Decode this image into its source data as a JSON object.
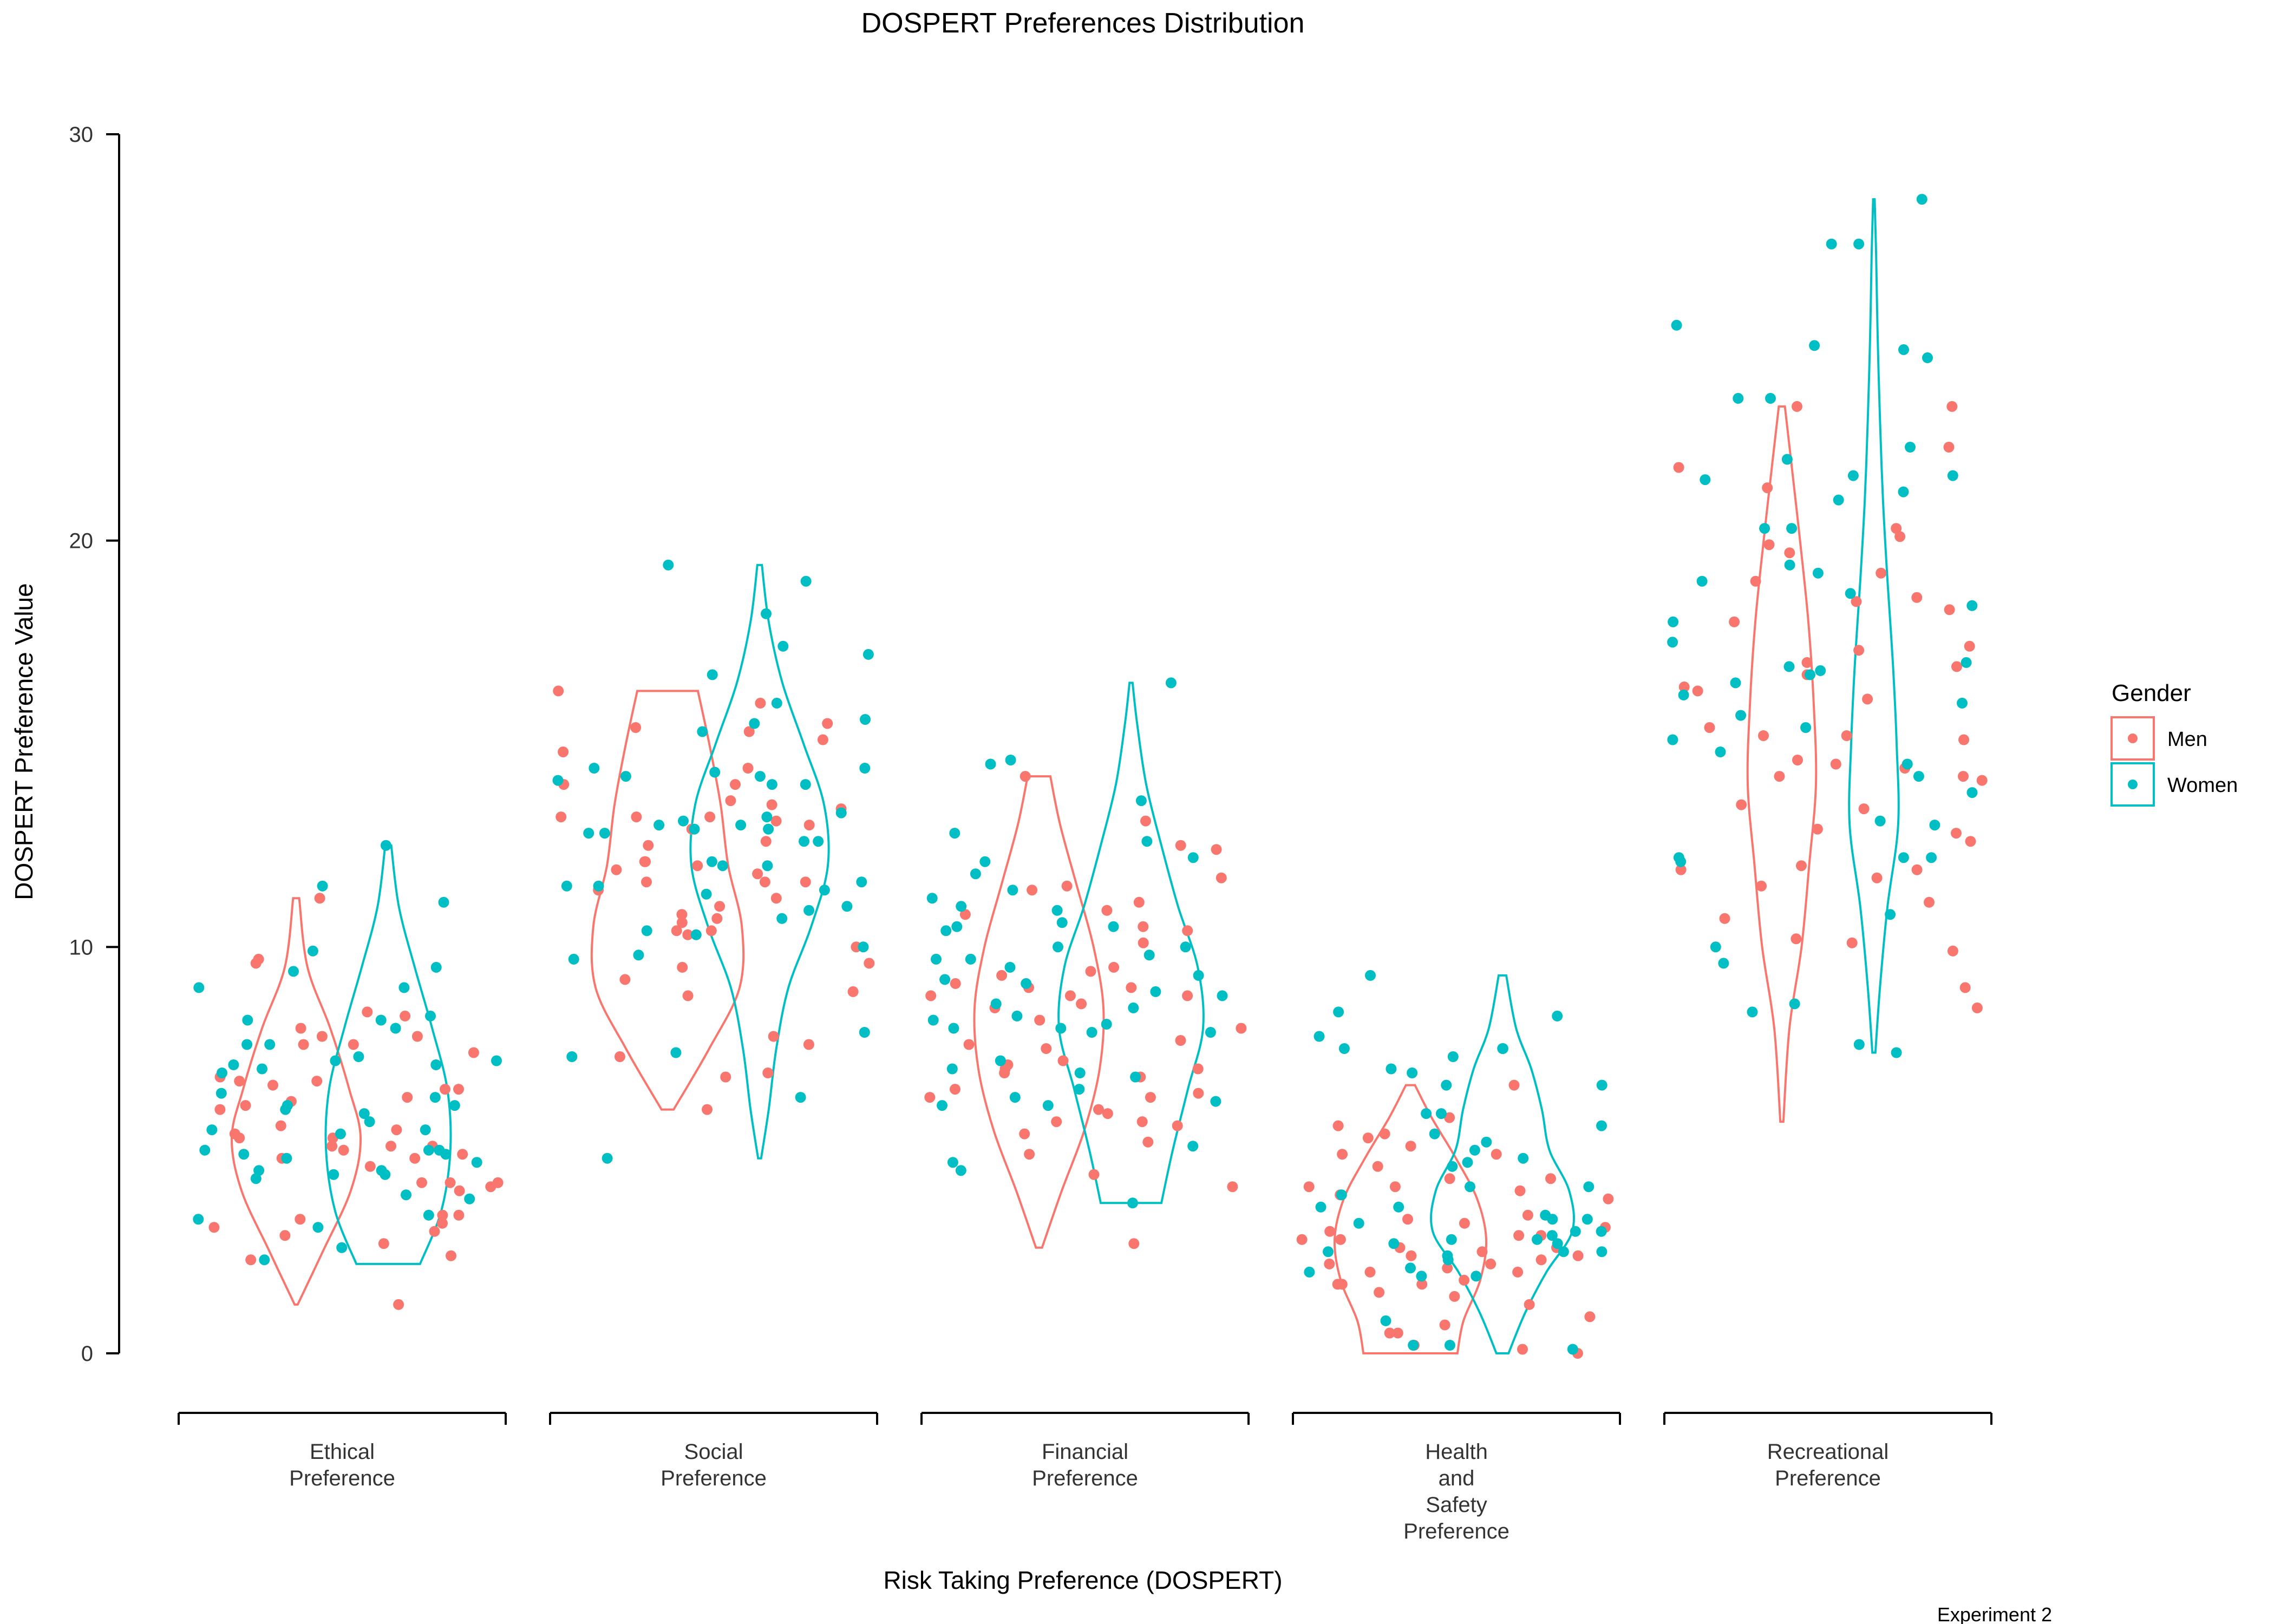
{
  "chart_data": {
    "type": "violin",
    "title": "DOSPERT Preferences Distribution",
    "xlabel": "Risk Taking Preference (DOSPERT)",
    "ylabel": "DOSPERT Preference Value",
    "caption": "Experiment 2",
    "ylim": [
      0,
      30
    ],
    "yticks": [
      0,
      10,
      20,
      30
    ],
    "grid": false,
    "legend": {
      "title": "Gender",
      "position": "right",
      "entries": [
        {
          "name": "Men",
          "color": "#F8766D"
        },
        {
          "name": "Women",
          "color": "#00BFC4"
        }
      ]
    },
    "categories": [
      {
        "label": [
          "Ethical",
          "Preference"
        ]
      },
      {
        "label": [
          "Social",
          "Preference"
        ]
      },
      {
        "label": [
          "Financial",
          "Preference"
        ]
      },
      {
        "label": [
          "Health",
          "and",
          "Safety",
          "Preference"
        ]
      },
      {
        "label": [
          "Recreational",
          "Preference"
        ]
      }
    ],
    "series": [
      {
        "name": "Men",
        "color": "#F8766D",
        "points": [
          [
            5.1,
            5.6,
            2.7,
            4.2,
            1.2,
            5.5,
            5.3,
            4.9,
            6.3,
            6.5,
            7.8,
            6.2,
            3.0,
            6.1,
            8.4,
            9.7,
            2.3,
            5.1,
            3.4,
            4.2,
            6.8,
            5.3,
            4.8,
            3.3,
            6.6,
            8.0,
            7.4,
            6.5,
            6.7,
            11.2,
            3.4,
            6.7,
            5.4,
            2.9,
            7.6,
            5.0,
            4.1,
            5.1,
            4.2,
            9.6,
            7.8,
            4.0,
            3.2,
            4.8,
            7.6,
            2.4,
            8.3,
            6.0,
            4.6,
            3.1
          ],
          [
            7.8,
            10.6,
            11.2,
            13.2,
            10.4,
            9.5,
            8.8,
            8.9,
            12.9,
            14.0,
            15.4,
            11.4,
            12.6,
            16.3,
            11.6,
            12.1,
            10.3,
            9.2,
            7.6,
            6.0,
            6.8,
            15.1,
            15.3,
            13.1,
            14.8,
            13.6,
            12.0,
            10.7,
            11.6,
            12.5,
            13.2,
            10.0,
            7.3,
            11.0,
            13.4,
            14.4,
            13.2,
            11.8,
            16.0,
            10.8,
            13.0,
            13.5,
            12.1,
            11.6,
            9.6,
            10.4,
            11.9,
            14.0,
            6.9,
            15.5
          ],
          [
            5.9,
            13.1,
            6.5,
            11.7,
            9.1,
            6.9,
            8.8,
            7.7,
            14.2,
            6.4,
            9.3,
            12.5,
            5.7,
            7.2,
            8.8,
            4.9,
            6.3,
            10.4,
            5.6,
            8.0,
            9.5,
            7.0,
            5.4,
            6.3,
            7.1,
            4.4,
            9.0,
            10.1,
            11.1,
            8.6,
            2.7,
            12.4,
            5.7,
            7.6,
            10.9,
            8.5,
            6.8,
            11.5,
            9.0,
            10.5,
            8.2,
            7.5,
            7.0,
            11.4,
            10.8,
            6.0,
            4.1,
            5.2,
            9.4,
            8.8
          ],
          [
            4.3,
            2.6,
            5.8,
            4.3,
            1.7,
            2.4,
            3.3,
            2.8,
            2.2,
            1.7,
            3.0,
            2.8,
            1.7,
            5.6,
            2.3,
            0.1,
            4.0,
            5.1,
            5.3,
            2.1,
            0.9,
            0.5,
            2.2,
            0.0,
            2.4,
            3.8,
            2.0,
            4.6,
            2.5,
            3.1,
            1.5,
            1.2,
            4.1,
            2.6,
            0.5,
            1.8,
            3.4,
            3.2,
            2.0,
            6.6,
            5.4,
            4.9,
            2.9,
            4.1,
            3.9,
            1.4,
            0.7,
            0.2,
            2.9,
            4.9
          ],
          [
            10.1,
            14.2,
            16.7,
            17.0,
            18.5,
            19.9,
            15.1,
            14.2,
            13.4,
            23.3,
            22.3,
            19.0,
            16.4,
            14.6,
            10.2,
            9.0,
            8.5,
            11.9,
            12.0,
            19.7,
            10.7,
            9.9,
            15.2,
            12.6,
            20.3,
            14.1,
            11.9,
            12.9,
            19.2,
            23.3,
            21.3,
            18.6,
            17.3,
            16.1,
            15.2,
            16.3,
            16.9,
            14.4,
            21.8,
            11.7,
            11.5,
            11.1,
            20.1,
            17.4,
            14.5,
            18.3,
            18.0,
            15.4,
            13.5,
            12.8
          ]
        ]
      },
      {
        "name": "Women",
        "color": "#00BFC4",
        "points": [
          [
            7.1,
            7.6,
            4.8,
            6.1,
            3.4,
            9.0,
            3.9,
            8.2,
            4.9,
            11.1,
            5.5,
            4.3,
            7.1,
            5.5,
            7.0,
            9.4,
            7.2,
            5.4,
            5.0,
            6.1,
            4.5,
            3.8,
            4.9,
            3.3,
            2.3,
            8.3,
            2.6,
            4.4,
            5.9,
            6.4,
            5.0,
            11.5,
            12.5,
            8.2,
            6.0,
            6.9,
            5.7,
            7.3,
            5.0,
            3.1,
            9.0,
            7.2,
            6.3,
            9.5,
            4.5,
            7.6,
            8.0,
            4.7,
            9.9,
            4.4
          ],
          [
            11.6,
            12.9,
            11.3,
            14.0,
            12.0,
            14.3,
            16.0,
            10.7,
            10.4,
            9.8,
            7.3,
            4.8,
            11.4,
            12.1,
            13.0,
            14.1,
            12.8,
            7.9,
            10.9,
            13.0,
            10.0,
            14.0,
            17.4,
            12.6,
            15.6,
            14.2,
            13.2,
            11.5,
            19.0,
            19.4,
            18.2,
            16.7,
            13.3,
            15.3,
            11.5,
            12.0,
            14.4,
            12.8,
            17.2,
            13.1,
            10.3,
            9.7,
            11.0,
            12.9,
            15.5,
            14.4,
            12.6,
            6.3,
            7.4,
            14.2
          ],
          [
            8.9,
            10.4,
            9.7,
            5.1,
            10.0,
            9.3,
            3.7,
            14.6,
            11.8,
            12.8,
            10.5,
            8.1,
            6.8,
            4.7,
            6.3,
            9.5,
            10.5,
            12.1,
            11.0,
            8.3,
            12.2,
            4.5,
            6.9,
            6.2,
            9.2,
            9.8,
            13.6,
            10.9,
            11.2,
            9.7,
            14.5,
            12.6,
            10.0,
            8.5,
            8.6,
            6.5,
            7.2,
            16.5,
            8.2,
            11.4,
            9.1,
            6.1,
            8.0,
            10.6,
            7.0,
            6.1,
            7.9,
            8.0,
            7.9,
            8.8
          ],
          [
            2.9,
            3.2,
            7.8,
            9.3,
            4.1,
            3.4,
            2.1,
            3.0,
            2.7,
            2.5,
            6.9,
            7.5,
            7.3,
            5.9,
            2.3,
            7.5,
            4.7,
            2.0,
            1.9,
            3.0,
            2.8,
            0.1,
            0.2,
            0.2,
            7.5,
            4.1,
            3.6,
            2.4,
            3.3,
            2.8,
            5.9,
            8.3,
            2.5,
            4.6,
            1.9,
            5.4,
            2.7,
            5.0,
            3.3,
            6.6,
            5.6,
            8.4,
            5.2,
            4.8,
            7.0,
            6.6,
            3.9,
            2.5,
            0.8,
            3.6
          ],
          [
            10.0,
            12.2,
            9.6,
            18.0,
            14.5,
            20.3,
            21.6,
            23.5,
            18.4,
            19.4,
            15.7,
            15.4,
            16.5,
            8.6,
            7.4,
            16.8,
            12.2,
            13.1,
            10.8,
            16.0,
            22.3,
            23.5,
            21.2,
            19.0,
            7.6,
            8.4,
            16.7,
            12.1,
            13.8,
            27.3,
            28.4,
            24.5,
            24.8,
            24.7,
            21.6,
            16.2,
            17.0,
            14.8,
            15.1,
            16.9,
            20.3,
            21.5,
            22.0,
            19.2,
            18.7,
            14.2,
            21.0,
            17.5,
            13.0,
            25.3,
            27.3,
            12.2
          ]
        ]
      }
    ],
    "violin_profiles": {
      "Men": [
        {
          "y": [
            1.2,
            2.5,
            4,
            5.3,
            6.5,
            8,
            9.5,
            11.2
          ],
          "w": [
            0.02,
            0.35,
            0.72,
            0.85,
            0.7,
            0.45,
            0.15,
            0.04
          ]
        },
        {
          "y": [
            6.0,
            7.5,
            9,
            10.5,
            12,
            13.5,
            15,
            16.3
          ],
          "w": [
            0.08,
            0.55,
            0.95,
            0.98,
            0.8,
            0.7,
            0.55,
            0.4
          ]
        },
        {
          "y": [
            2.6,
            4,
            5.5,
            7,
            8.5,
            10,
            11.5,
            13,
            14.2
          ],
          "w": [
            0.04,
            0.3,
            0.6,
            0.8,
            0.85,
            0.72,
            0.5,
            0.28,
            0.15
          ]
        },
        {
          "y": [
            0.0,
            0.8,
            1.8,
            2.8,
            3.8,
            4.8,
            5.8,
            6.6
          ],
          "w": [
            0.62,
            0.7,
            0.92,
            1.0,
            0.88,
            0.6,
            0.28,
            0.06
          ]
        },
        {
          "y": [
            5.7,
            8,
            10,
            12,
            14,
            16,
            18,
            20,
            22,
            23.3
          ],
          "w": [
            0.02,
            0.1,
            0.26,
            0.36,
            0.45,
            0.42,
            0.35,
            0.24,
            0.12,
            0.04
          ]
        }
      ],
      "Women": [
        {
          "y": [
            2.2,
            3.5,
            5,
            6.5,
            8,
            9.5,
            11,
            12.5
          ],
          "w": [
            0.42,
            0.7,
            0.82,
            0.78,
            0.58,
            0.35,
            0.14,
            0.04
          ]
        },
        {
          "y": [
            4.8,
            6,
            7.5,
            9,
            10.5,
            12,
            13.5,
            15,
            16.5,
            18,
            19.4
          ],
          "w": [
            0.02,
            0.12,
            0.22,
            0.38,
            0.68,
            0.9,
            0.85,
            0.58,
            0.3,
            0.12,
            0.03
          ]
        },
        {
          "y": [
            3.7,
            5,
            6.5,
            8,
            9.5,
            11,
            12.5,
            14,
            15.5,
            16.5
          ],
          "w": [
            0.4,
            0.55,
            0.75,
            0.95,
            0.88,
            0.62,
            0.4,
            0.2,
            0.08,
            0.02
          ]
        },
        {
          "y": [
            0.0,
            1,
            2,
            3,
            4,
            5,
            6,
            7,
            8,
            9.3
          ],
          "w": [
            0.08,
            0.3,
            0.58,
            0.92,
            0.88,
            0.62,
            0.52,
            0.38,
            0.18,
            0.05
          ]
        },
        {
          "y": [
            7.4,
            9,
            11,
            13,
            15,
            17,
            19,
            21,
            23,
            25,
            27,
            28.4
          ],
          "w": [
            0.02,
            0.08,
            0.18,
            0.32,
            0.3,
            0.25,
            0.18,
            0.12,
            0.08,
            0.05,
            0.03,
            0.01
          ]
        }
      ]
    }
  }
}
